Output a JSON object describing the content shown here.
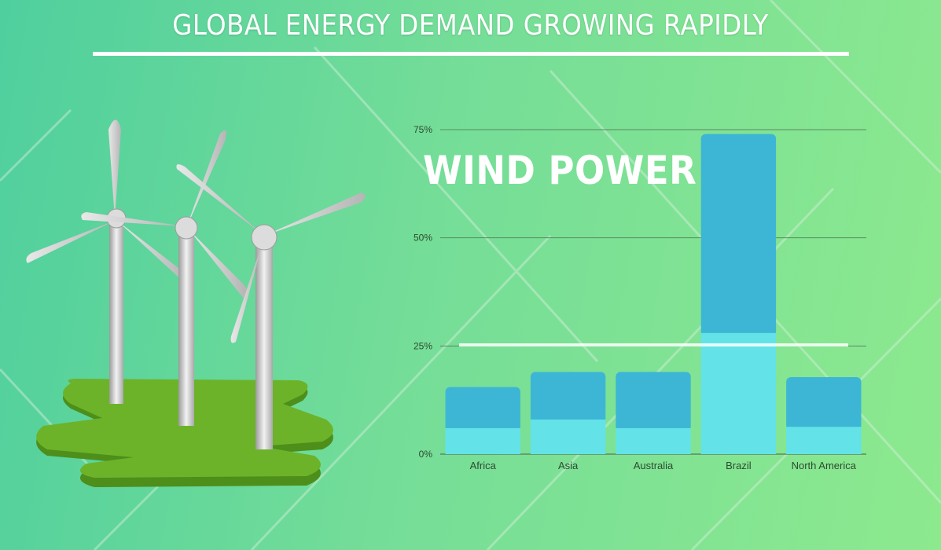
{
  "title": "GLOBAL ENERGY DEMAND GROWING RAPIDLY",
  "colors": {
    "bar_top": "#3db6d6",
    "bar_bottom": "#63e3e8",
    "grid": "#5a8a60",
    "axis_text": "#2e4a30",
    "grass": "#6cb32a"
  },
  "chart_data": {
    "type": "bar",
    "title": "WIND POWER",
    "categories": [
      "Africa",
      "Asia",
      "Australia",
      "Brazil",
      "North America"
    ],
    "series": [
      {
        "values": [
          6,
          8,
          6,
          28,
          6.3
        ]
      },
      {
        "values": [
          9.5,
          11,
          13,
          46,
          11.5
        ]
      }
    ],
    "totals": [
      15.5,
      19,
      19,
      74,
      17.8
    ],
    "yticks": [
      "0%",
      "25%",
      "50%",
      "75%"
    ],
    "ylim": [
      0,
      75
    ],
    "grid": true,
    "stacked": true
  }
}
